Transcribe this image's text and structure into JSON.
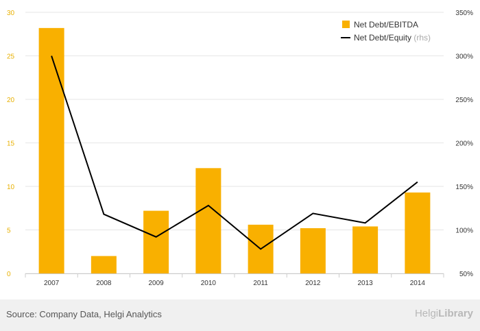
{
  "chart_data": {
    "type": "bar",
    "categories": [
      "2007",
      "2008",
      "2009",
      "2010",
      "2011",
      "2012",
      "2013",
      "2014"
    ],
    "series": [
      {
        "name": "Net Debt/EBITDA",
        "type": "bar",
        "axis": "left",
        "color": "#f9b000",
        "values": [
          28.2,
          2.0,
          7.2,
          12.1,
          5.6,
          5.2,
          5.4,
          9.3
        ]
      },
      {
        "name": "Net Debt/Equity",
        "type": "line",
        "axis": "right",
        "color": "#000000",
        "values": [
          300,
          118,
          92,
          128,
          78,
          119,
          108,
          155
        ]
      }
    ],
    "y_left": {
      "min": 0,
      "max": 30,
      "ticks": [
        "0",
        "5",
        "10",
        "15",
        "20",
        "25",
        "30"
      ]
    },
    "y_right": {
      "min": 50,
      "max": 350,
      "ticks": [
        "50%",
        "100%",
        "150%",
        "200%",
        "250%",
        "300%",
        "350%"
      ]
    },
    "grid": true,
    "legend": {
      "position": "top-right",
      "rhs_note": "(rhs)"
    }
  },
  "footer": {
    "source": "Source: Company Data, Helgi Analytics",
    "logo_light": "Helgi",
    "logo_bold": "Library"
  }
}
